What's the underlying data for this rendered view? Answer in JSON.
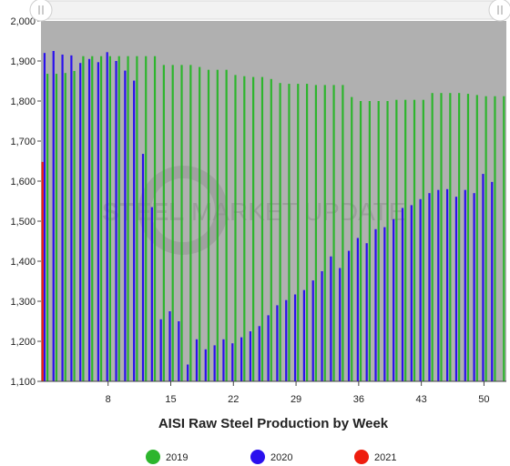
{
  "chart_data": {
    "type": "bar",
    "title": "AISI Raw Steel Production by Week",
    "ylim": [
      1100,
      2000
    ],
    "yticks": [
      "1,100",
      "1,200",
      "1,300",
      "1,400",
      "1,500",
      "1,600",
      "1,700",
      "1,800",
      "1,900",
      "2,000"
    ],
    "xticks": [
      "8",
      "15",
      "22",
      "29",
      "36",
      "43",
      "50"
    ],
    "xtick_weeks": [
      8,
      15,
      22,
      29,
      36,
      43,
      50
    ],
    "weeks": 52,
    "grid": false,
    "legend_position": "bottom",
    "watermark": "STEEL MARKET UPDATE",
    "series": [
      {
        "name": "2019",
        "color": "#2db52d",
        "values": [
          1868,
          1868,
          1870,
          1875,
          1912,
          1912,
          1912,
          1912,
          1912,
          1912,
          1912,
          1912,
          1912,
          1890,
          1890,
          1890,
          1890,
          1885,
          1878,
          1878,
          1878,
          1865,
          1862,
          1860,
          1860,
          1855,
          1845,
          1843,
          1843,
          1843,
          1840,
          1840,
          1840,
          1840,
          1810,
          1800,
          1800,
          1800,
          1800,
          1803,
          1803,
          1803,
          1803,
          1820,
          1820,
          1820,
          1820,
          1818,
          1815,
          1812,
          1812,
          1812
        ]
      },
      {
        "name": "2020",
        "color": "#2a10ee",
        "values": [
          1920,
          1925,
          1916,
          1914,
          1895,
          1905,
          1897,
          1922,
          1900,
          1876,
          1851,
          1668,
          1535,
          1255,
          1275,
          1250,
          1142,
          1205,
          1180,
          1190,
          1205,
          1195,
          1210,
          1225,
          1238,
          1265,
          1290,
          1303,
          1317,
          1328,
          1352,
          1375,
          1412,
          1383,
          1426,
          1458,
          1445,
          1480,
          1485,
          1505,
          1533,
          1540,
          1555,
          1570,
          1578,
          1580,
          1561,
          1578,
          1570,
          1618,
          1598
        ]
      },
      {
        "name": "2021",
        "color": "#ee1d0e",
        "values": [
          1648
        ]
      }
    ]
  }
}
